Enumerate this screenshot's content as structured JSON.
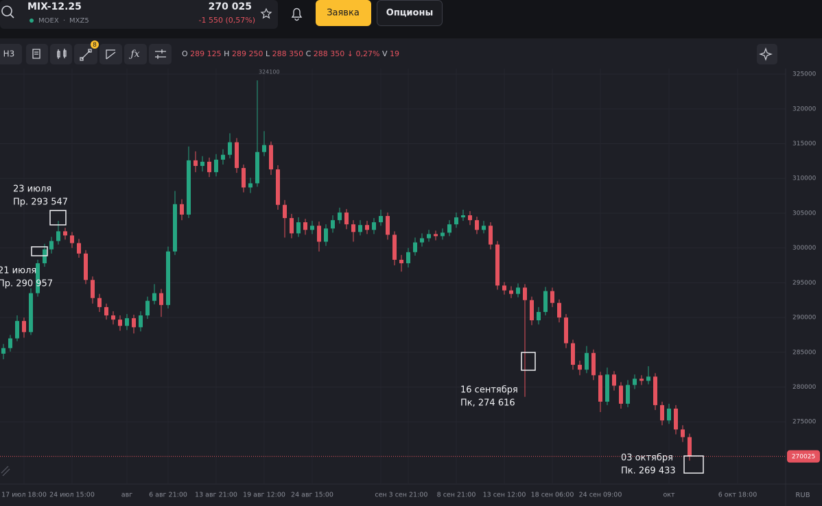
{
  "header": {
    "symbol": "MIX-12.25",
    "exchange": "MOEX",
    "ticker": "MXZ5",
    "price": "270 025",
    "change": "-1 550 (0,57%)",
    "buttons": [
      "Заявка",
      "Опционы"
    ]
  },
  "toolbar": {
    "interval": "Н3",
    "badge": "8",
    "legend": [
      {
        "key": "O",
        "value": "289 125"
      },
      {
        "key": "H",
        "value": "289 250"
      },
      {
        "key": "L",
        "value": "288 350"
      },
      {
        "key": "C",
        "value": "288 350"
      }
    ],
    "change": "↓ 0,27%",
    "volume_key": "V",
    "volume": "19"
  },
  "chart_data": {
    "type": "candlestick",
    "currency": "RUB",
    "up_color": "#26a682",
    "down_color": "#e5535f",
    "ylim": [
      266050,
      325800
    ],
    "yticks": [
      275000,
      280000,
      285000,
      290000,
      295000,
      300000,
      305000,
      310000,
      315000,
      320000,
      325000
    ],
    "grid": true,
    "last_price": 270025,
    "annotations": [
      {
        "date": "23 июля",
        "text": "Пр. 293 547"
      },
      {
        "date": "21 июля",
        "text": "Пр. 290 957"
      },
      {
        "date": "16 сентября",
        "text": "Пк, 274 616"
      },
      {
        "date": "03 октября",
        "text": "Пк. 269 433"
      }
    ],
    "categories": [
      null,
      null,
      null,
      "17 июл 18:00",
      null,
      null,
      null,
      null,
      null,
      null,
      "24 июл 15:00",
      null,
      null,
      null,
      null,
      null,
      null,
      null,
      "авг",
      null,
      null,
      null,
      null,
      null,
      "6 авг 21:00",
      null,
      null,
      null,
      null,
      null,
      null,
      "13 авг 21:00",
      null,
      null,
      null,
      null,
      null,
      null,
      "19 авг 12:00",
      null,
      null,
      null,
      null,
      null,
      null,
      "24 авг 15:00",
      null,
      null,
      null,
      null,
      null,
      null,
      null,
      null,
      null,
      "сен",
      null,
      null,
      null,
      "3 сен 21:00",
      null,
      null,
      null,
      null,
      null,
      null,
      "8 сен 21:00",
      null,
      null,
      null,
      null,
      null,
      null,
      "13 сен 12:00",
      null,
      null,
      null,
      null,
      null,
      null,
      "18 сен 06:00",
      null,
      null,
      null,
      null,
      null,
      null,
      "24 сен 09:00",
      null,
      null,
      null,
      null,
      null,
      null,
      null,
      null,
      null,
      "окт",
      null,
      null,
      null,
      null,
      null,
      null,
      null,
      null,
      null,
      "6 окт 18:00"
    ],
    "ohlc": [
      [
        284800,
        286200,
        284000,
        285600
      ],
      [
        285600,
        287500,
        285100,
        287000
      ],
      [
        287000,
        290300,
        286600,
        289500
      ],
      [
        289500,
        290000,
        287100,
        287900
      ],
      [
        287900,
        294200,
        287500,
        293500
      ],
      [
        293500,
        298300,
        293000,
        297800
      ],
      [
        297800,
        300600,
        297300,
        299800
      ],
      [
        299800,
        301600,
        299200,
        301000
      ],
      [
        301000,
        303900,
        300500,
        302400
      ],
      [
        302400,
        302900,
        301200,
        301800
      ],
      [
        301800,
        302300,
        300000,
        300700
      ],
      [
        300700,
        301300,
        298600,
        299200
      ],
      [
        299200,
        299700,
        294800,
        295400
      ],
      [
        295400,
        295900,
        292000,
        292800
      ],
      [
        292800,
        293400,
        290800,
        291500
      ],
      [
        291500,
        292000,
        289700,
        290300
      ],
      [
        290300,
        290900,
        289000,
        289700
      ],
      [
        289700,
        290300,
        288100,
        288800
      ],
      [
        288800,
        290500,
        288200,
        289900
      ],
      [
        289900,
        290400,
        287700,
        288600
      ],
      [
        288600,
        290900,
        288000,
        290300
      ],
      [
        290300,
        293000,
        289800,
        292400
      ],
      [
        292400,
        294800,
        291900,
        293500
      ],
      [
        293500,
        294100,
        290100,
        291800
      ],
      [
        291800,
        300200,
        291300,
        299500
      ],
      [
        299500,
        308200,
        299000,
        306300
      ],
      [
        306300,
        307000,
        304000,
        304800
      ],
      [
        304800,
        314600,
        304300,
        312600
      ],
      [
        312600,
        313900,
        310900,
        311800
      ],
      [
        311800,
        313200,
        311000,
        312400
      ],
      [
        312400,
        313000,
        310200,
        310900
      ],
      [
        310900,
        313500,
        310300,
        312700
      ],
      [
        312700,
        314200,
        312000,
        313400
      ],
      [
        313400,
        316500,
        312900,
        315200
      ],
      [
        315200,
        315800,
        310800,
        311500
      ],
      [
        311500,
        312000,
        308000,
        308700
      ],
      [
        308700,
        310100,
        307900,
        309300
      ],
      [
        309300,
        324100,
        308800,
        313800
      ],
      [
        313800,
        316800,
        313200,
        314800
      ],
      [
        314800,
        315300,
        310500,
        311300
      ],
      [
        311300,
        311900,
        305500,
        306200
      ],
      [
        306200,
        306900,
        301500,
        304300
      ],
      [
        304300,
        304900,
        301400,
        302100
      ],
      [
        302100,
        304400,
        301600,
        303700
      ],
      [
        303700,
        304200,
        301900,
        302600
      ],
      [
        302600,
        303900,
        302000,
        303200
      ],
      [
        303200,
        303800,
        299500,
        300900
      ],
      [
        300900,
        303400,
        300300,
        302800
      ],
      [
        302800,
        304700,
        302200,
        304000
      ],
      [
        304000,
        305800,
        303500,
        305100
      ],
      [
        305100,
        305600,
        302700,
        303400
      ],
      [
        303400,
        304000,
        300900,
        302300
      ],
      [
        302300,
        304000,
        301800,
        303300
      ],
      [
        303300,
        303900,
        302000,
        302600
      ],
      [
        302600,
        304300,
        302000,
        303700
      ],
      [
        303700,
        305500,
        303200,
        304600
      ],
      [
        304600,
        305100,
        301200,
        301900
      ],
      [
        301900,
        302400,
        297500,
        298300
      ],
      [
        298300,
        299000,
        296600,
        297800
      ],
      [
        297800,
        300000,
        297200,
        299400
      ],
      [
        299400,
        301500,
        298900,
        300800
      ],
      [
        300800,
        302100,
        300200,
        301400
      ],
      [
        301400,
        302600,
        300900,
        302000
      ],
      [
        302000,
        302500,
        301100,
        301700
      ],
      [
        301700,
        302800,
        301200,
        302200
      ],
      [
        302200,
        304000,
        301700,
        303400
      ],
      [
        303400,
        305100,
        302900,
        304400
      ],
      [
        304400,
        305500,
        303900,
        304700
      ],
      [
        304700,
        305300,
        303300,
        304000
      ],
      [
        304000,
        304500,
        302000,
        302600
      ],
      [
        302600,
        303900,
        302100,
        303200
      ],
      [
        303200,
        303700,
        299800,
        300500
      ],
      [
        300500,
        301000,
        294000,
        294600
      ],
      [
        294600,
        295100,
        293300,
        293900
      ],
      [
        293900,
        294500,
        292800,
        293400
      ],
      [
        293400,
        294900,
        292900,
        294300
      ],
      [
        294300,
        294800,
        278600,
        292500
      ],
      [
        292500,
        293000,
        288900,
        289600
      ],
      [
        289600,
        291500,
        289000,
        290800
      ],
      [
        290800,
        294400,
        290300,
        293800
      ],
      [
        293800,
        294300,
        291500,
        292100
      ],
      [
        292100,
        292600,
        289300,
        290000
      ],
      [
        290000,
        290500,
        285600,
        286300
      ],
      [
        286300,
        286800,
        282500,
        283200
      ],
      [
        283200,
        283800,
        281700,
        282500
      ],
      [
        282500,
        285900,
        282000,
        284900
      ],
      [
        284900,
        285400,
        281000,
        281700
      ],
      [
        281700,
        282200,
        276400,
        277900
      ],
      [
        277900,
        282800,
        277400,
        281800
      ],
      [
        281800,
        282300,
        279500,
        280200
      ],
      [
        280200,
        280700,
        276900,
        277600
      ],
      [
        277600,
        281000,
        277100,
        280300
      ],
      [
        280300,
        281800,
        279700,
        281200
      ],
      [
        281200,
        281700,
        280300,
        280900
      ],
      [
        280900,
        283000,
        280400,
        281500
      ],
      [
        281500,
        282000,
        276700,
        277400
      ],
      [
        277400,
        277900,
        274500,
        275200
      ],
      [
        275200,
        277600,
        274700,
        276900
      ],
      [
        276900,
        277400,
        273200,
        273900
      ],
      [
        273900,
        274500,
        272100,
        272800
      ],
      [
        272800,
        273300,
        269433,
        270025
      ],
      null,
      null,
      null,
      null,
      null,
      null,
      null
    ]
  }
}
